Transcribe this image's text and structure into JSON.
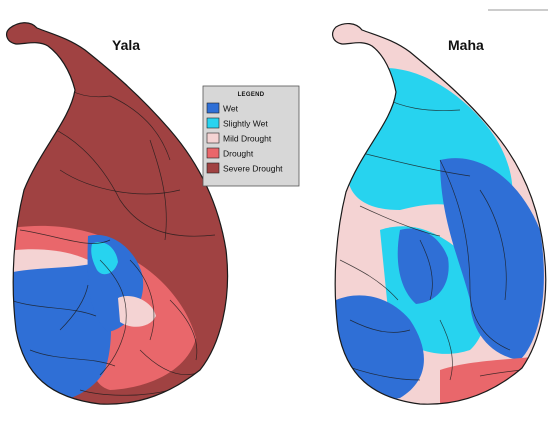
{
  "maps": [
    {
      "title": "Yala"
    },
    {
      "title": "Maha"
    }
  ],
  "legend": {
    "title": "LEGEND",
    "items": [
      {
        "label": "Wet",
        "color": "#2f6fd6"
      },
      {
        "label": "Slightly Wet",
        "color": "#27d3ef"
      },
      {
        "label": "Mild Drought",
        "color": "#f4d3d3"
      },
      {
        "label": "Drought",
        "color": "#e9676b"
      },
      {
        "label": "Severe Drought",
        "color": "#a04242"
      }
    ]
  },
  "colors": {
    "wet": "#2f6fd6",
    "slightly_wet": "#27d3ef",
    "mild_drought": "#f4d3d3",
    "drought": "#e9676b",
    "severe_drought": "#a04242"
  }
}
